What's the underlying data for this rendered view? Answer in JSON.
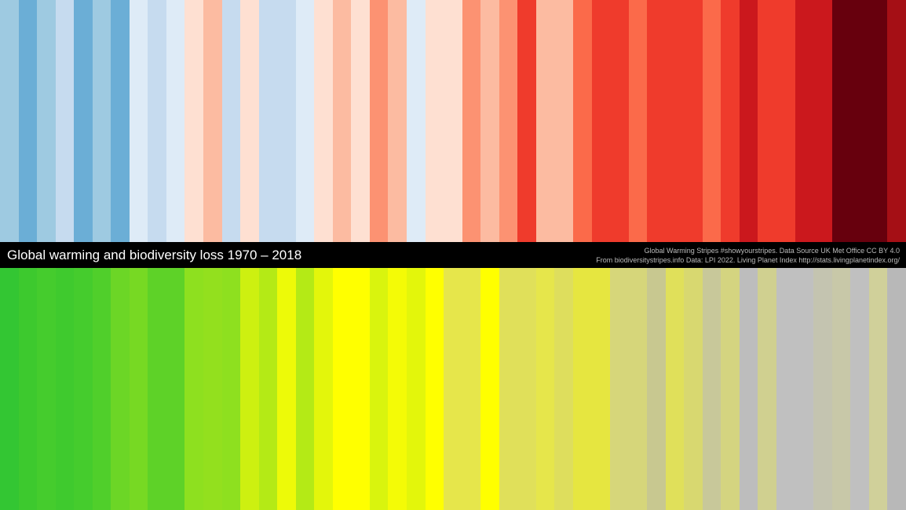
{
  "title": "Global warming and biodiversity loss 1970 – 2018",
  "credits": [
    "Global Warming Stripes #showyourstripes. Data Source UK Met Office CC BY 4.0",
    "From biodiversitystripes.info Data: LPI 2022. Living Planet Index http://stats.livingplanetindex.org/"
  ],
  "warming_stripes": [
    "#9ecae1",
    "#6baed6",
    "#9ecae1",
    "#c6dbef",
    "#6baed6",
    "#9ecae1",
    "#6baed6",
    "#deebf7",
    "#c6dbef",
    "#deebf7",
    "#fee0d2",
    "#fcbba1",
    "#c6dbef",
    "#fee0d2",
    "#c6dbef",
    "#c6dbef",
    "#deebf7",
    "#fee0d2",
    "#fcbba1",
    "#fee0d2",
    "#fc9272",
    "#fcbba1",
    "#deebf7",
    "#fee0d2",
    "#fee0d2",
    "#fc9272",
    "#fcbba1",
    "#fc9272",
    "#ef3b2c",
    "#fcbba1",
    "#fcbba1",
    "#fb6a4a",
    "#ef3b2c",
    "#ef3b2c",
    "#fb6a4a",
    "#ef3b2c",
    "#ef3b2c",
    "#ef3b2c",
    "#fb6a4a",
    "#ef3b2c",
    "#cb181d",
    "#ef3b2c",
    "#ef3b2c",
    "#cb181d",
    "#cb181d",
    "#67000d",
    "#67000d",
    "#67000d",
    "#a50f15"
  ],
  "biodiversity_stripes": [
    "#33c633",
    "#3dc92e",
    "#45cc2d",
    "#3fca2e",
    "#45cc2d",
    "#50cf2b",
    "#6cd626",
    "#77d923",
    "#5ed228",
    "#5ed228",
    "#8ee01f",
    "#93e01e",
    "#8ee01f",
    "#cdf010",
    "#b4ea16",
    "#edfa08",
    "#b4ea16",
    "#e3f60b",
    "#ffff00",
    "#ffff00",
    "#d9f40e",
    "#f4fb06",
    "#e3f60b",
    "#ffff00",
    "#e6e64b",
    "#e6e64b",
    "#ffff00",
    "#e0e05a",
    "#e0e05a",
    "#e6e64b",
    "#dede5d",
    "#e6e640",
    "#e6e640",
    "#d6d67a",
    "#d6d67a",
    "#c8c890",
    "#e0e05a",
    "#d8d870",
    "#c8c89a",
    "#d4d480",
    "#bdbdbd",
    "#d0d090",
    "#c0c0c0",
    "#c0c0c0",
    "#c4c4b0",
    "#c8c8a8",
    "#c0c0c0",
    "#d0d09a",
    "#b8b8b8"
  ]
}
